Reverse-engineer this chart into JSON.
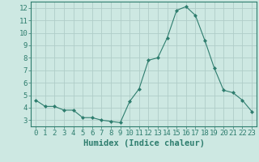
{
  "x": [
    0,
    1,
    2,
    3,
    4,
    5,
    6,
    7,
    8,
    9,
    10,
    11,
    12,
    13,
    14,
    15,
    16,
    17,
    18,
    19,
    20,
    21,
    22,
    23
  ],
  "y": [
    4.6,
    4.1,
    4.1,
    3.8,
    3.8,
    3.2,
    3.2,
    3.0,
    2.9,
    2.8,
    4.5,
    5.5,
    7.8,
    8.0,
    9.6,
    11.8,
    12.1,
    11.4,
    9.4,
    7.2,
    5.4,
    5.2,
    4.6,
    3.7
  ],
  "line_color": "#2e7d6e",
  "marker": "D",
  "markersize": 2.0,
  "bg_color": "#cde8e2",
  "grid_color": "#b0cdc8",
  "xlabel": "Humidex (Indice chaleur)",
  "xlim": [
    -0.5,
    23.5
  ],
  "ylim": [
    2.5,
    12.5
  ],
  "yticks": [
    3,
    4,
    5,
    6,
    7,
    8,
    9,
    10,
    11,
    12
  ],
  "xticks": [
    0,
    1,
    2,
    3,
    4,
    5,
    6,
    7,
    8,
    9,
    10,
    11,
    12,
    13,
    14,
    15,
    16,
    17,
    18,
    19,
    20,
    21,
    22,
    23
  ],
  "tick_color": "#2e7d6e",
  "label_color": "#2e7d6e",
  "xlabel_fontsize": 7.5,
  "tick_fontsize": 6.5
}
